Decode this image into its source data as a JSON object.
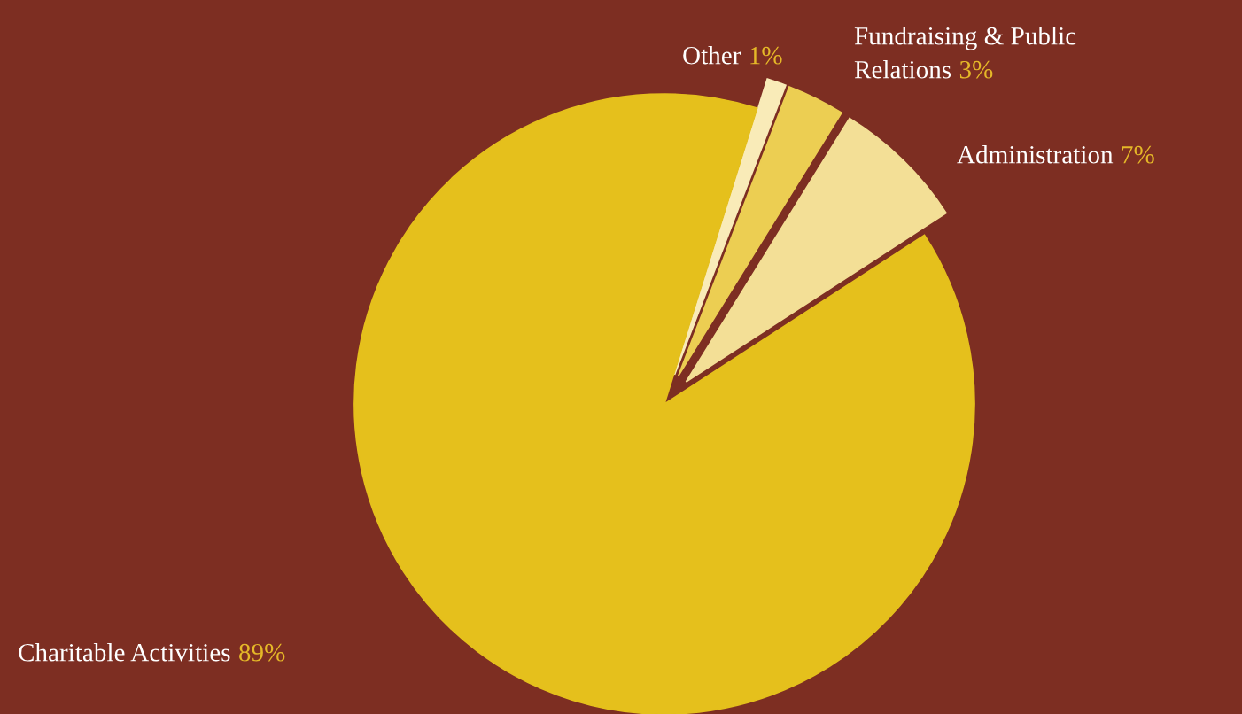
{
  "chart_data": {
    "type": "pie",
    "categories": [
      "Administration",
      "Fundraising & Public Relations",
      "Other",
      "Charitable Activities"
    ],
    "values": [
      7,
      3,
      1,
      89
    ],
    "value_labels": [
      "7%",
      "3%",
      "1%",
      "89%"
    ],
    "colors": [
      "#f3df96",
      "#ecce52",
      "#f9ebb8",
      "#e5c01c"
    ],
    "legend": false
  }
}
